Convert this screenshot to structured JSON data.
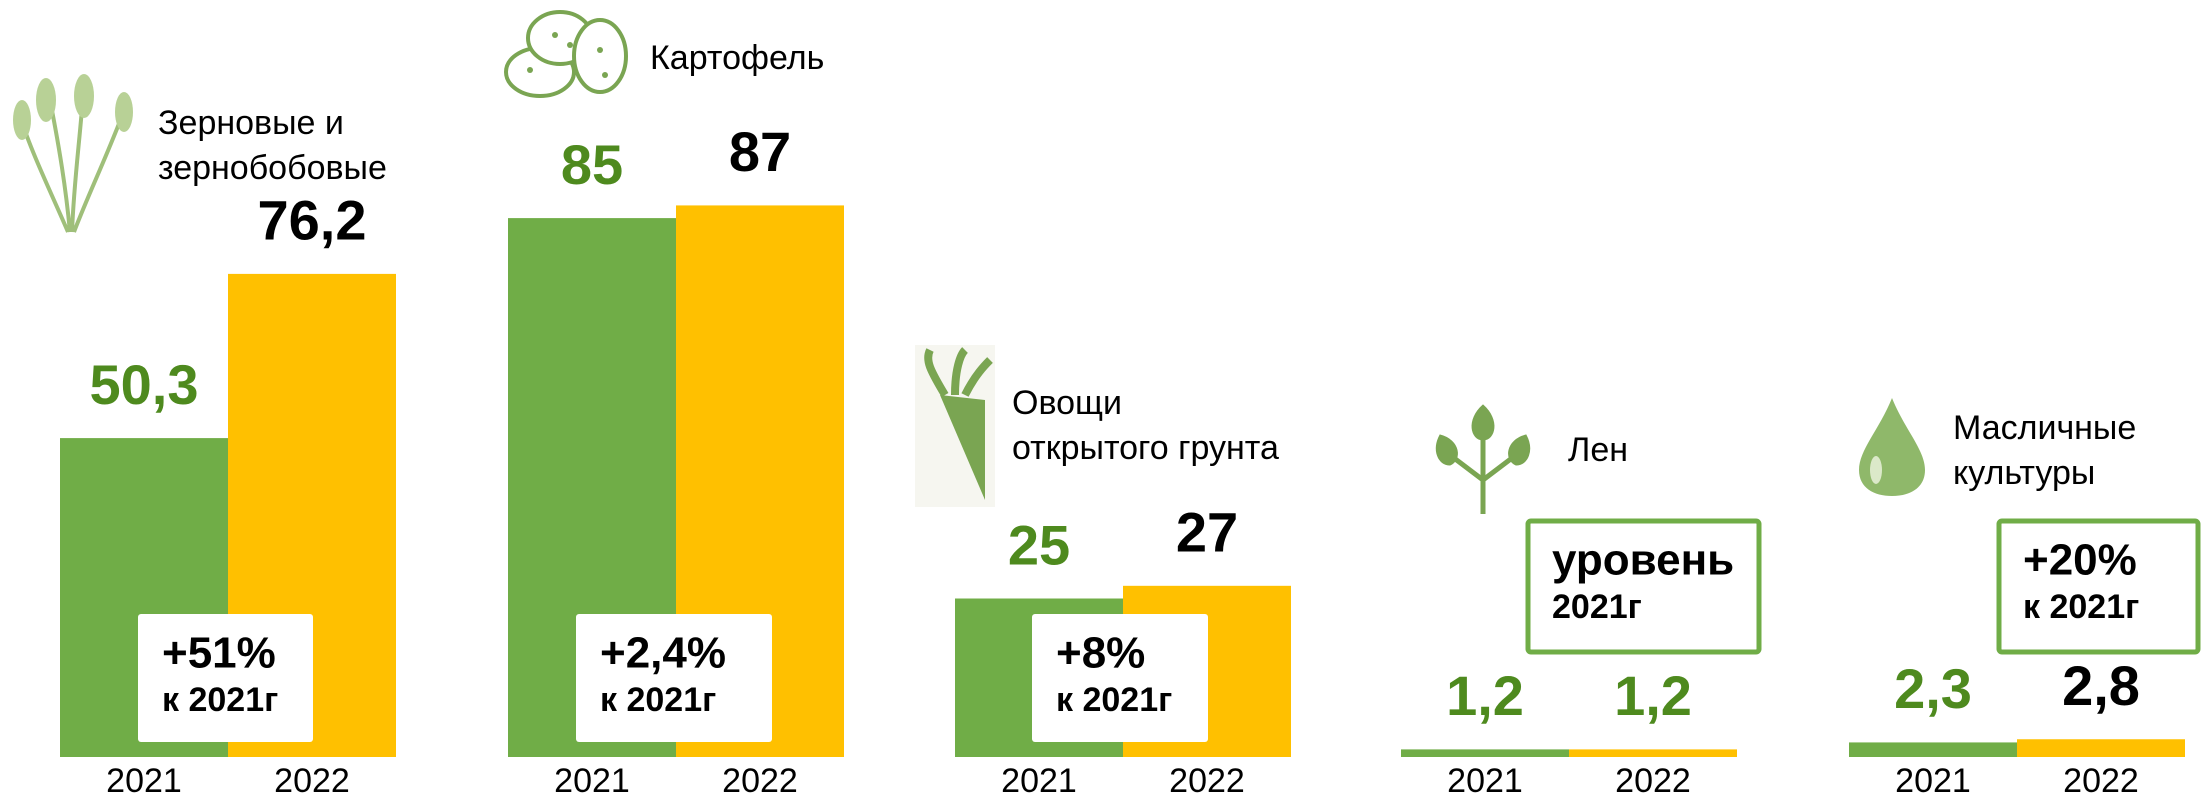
{
  "chart_data": [
    {
      "type": "bar",
      "title": [
        "Зерновые и",
        "зернобобовые"
      ],
      "categories": [
        "2021",
        "2022"
      ],
      "values": [
        50.3,
        76.2
      ],
      "value_labels": [
        "50,3",
        "76,2"
      ],
      "colors": [
        "#70ad47",
        "#ffc000"
      ],
      "label_colors": [
        "#4e8a1e",
        "#000000"
      ],
      "annotation": [
        "+51%",
        "к 2021г"
      ],
      "ylim": [
        0,
        100
      ]
    },
    {
      "type": "bar",
      "title": [
        "Картофель"
      ],
      "categories": [
        "2021",
        "2022"
      ],
      "values": [
        85,
        87
      ],
      "colors": [
        "#70ad47",
        "#ffc000"
      ],
      "label_colors": [
        "#4e8a1e",
        "#000000"
      ],
      "annotation": [
        "+2,4%",
        "к 2021г"
      ],
      "ylim": [
        0,
        100
      ]
    },
    {
      "type": "bar",
      "title": [
        "Овощи",
        "открытого грунта"
      ],
      "categories": [
        "2021",
        "2022"
      ],
      "values": [
        25,
        27
      ],
      "colors": [
        "#70ad47",
        "#ffc000"
      ],
      "label_colors": [
        "#4e8a1e",
        "#000000"
      ],
      "annotation": [
        "+8%",
        "к 2021г"
      ],
      "ylim": [
        0,
        100
      ]
    },
    {
      "type": "bar",
      "title": [
        "Лен"
      ],
      "categories": [
        "2021",
        "2022"
      ],
      "values": [
        1.2,
        1.2
      ],
      "value_labels": [
        "1,2",
        "1,2"
      ],
      "colors": [
        "#70ad47",
        "#ffc000"
      ],
      "label_colors": [
        "#4e8a1e",
        "#4e8a1e"
      ],
      "annotation": [
        "уровень",
        "2021г"
      ],
      "ylim": [
        0,
        100
      ]
    },
    {
      "type": "bar",
      "title": [
        "Масличные",
        "культуры"
      ],
      "categories": [
        "2021",
        "2022"
      ],
      "values": [
        2.3,
        2.8
      ],
      "value_labels": [
        "2,3",
        "2,8"
      ],
      "colors": [
        "#70ad47",
        "#ffc000"
      ],
      "label_colors": [
        "#4e8a1e",
        "#000000"
      ],
      "annotation": [
        "+20%",
        "к 2021г"
      ],
      "ylim": [
        0,
        100
      ]
    }
  ]
}
